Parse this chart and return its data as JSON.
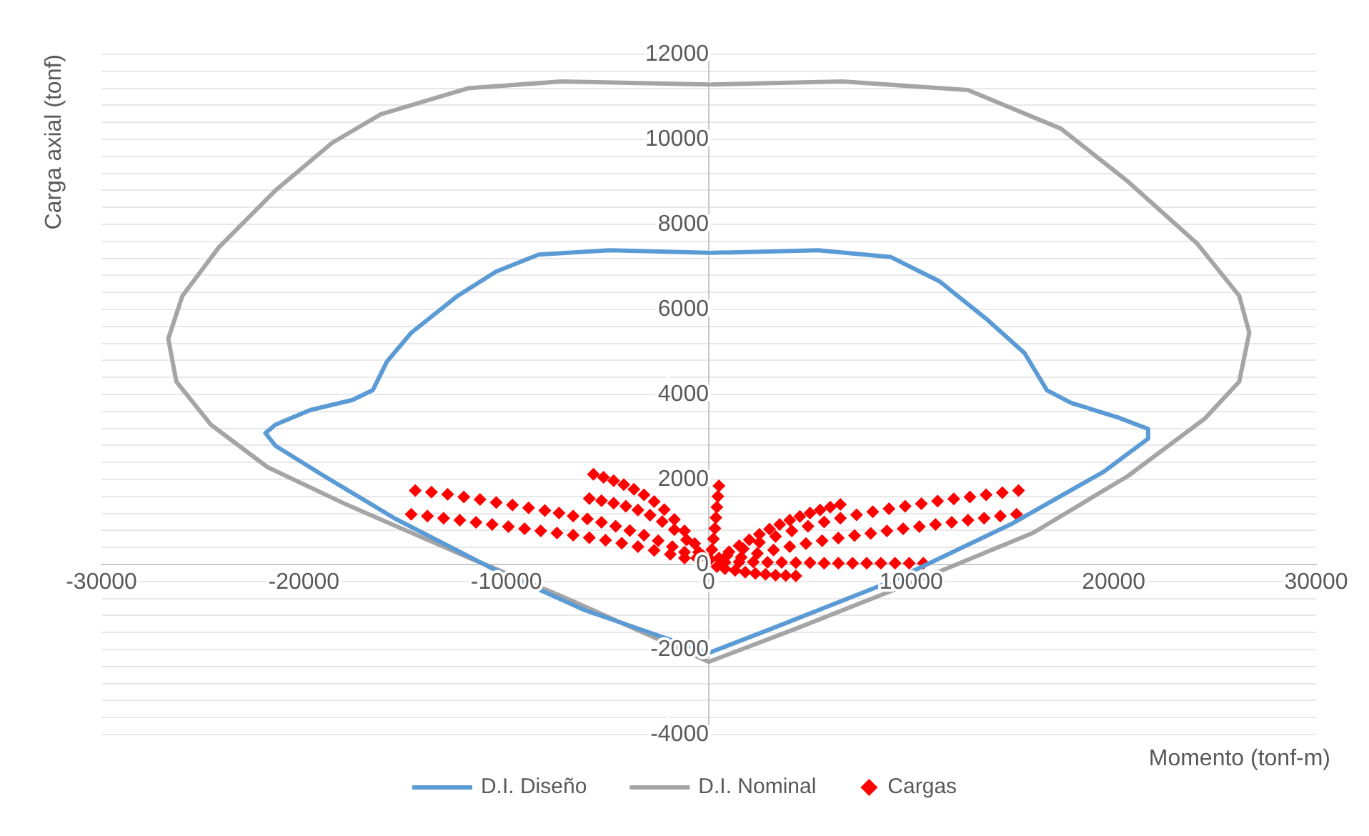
{
  "chart_data": {
    "type": "line",
    "xlabel": "Momento (tonf-m)",
    "ylabel": "Carga axial (tonf)",
    "xlim": [
      -30000,
      30000
    ],
    "xticks": [
      -30000,
      -20000,
      -10000,
      0,
      10000,
      20000,
      30000
    ],
    "ylim": [
      -4000,
      12000
    ],
    "yticks": [
      -4000,
      {
        "value": -3600,
        "label": null
      },
      {
        "value": -3200,
        "label": null
      },
      {
        "value": -2800,
        "label": null
      },
      {
        "value": -2400,
        "label": null
      },
      -2000,
      {
        "value": -1600,
        "label": null
      },
      {
        "value": -1200,
        "label": null
      },
      {
        "value": -800,
        "label": null
      },
      {
        "value": -400,
        "label": null
      },
      0,
      {
        "value": 400,
        "label": null
      },
      {
        "value": 800,
        "label": null
      },
      {
        "value": 1200,
        "label": null
      },
      {
        "value": 1600,
        "label": null
      },
      2000,
      {
        "value": 2400,
        "label": null
      },
      {
        "value": 2800,
        "label": null
      },
      {
        "value": 3200,
        "label": null
      },
      {
        "value": 3600,
        "label": null
      },
      4000,
      {
        "value": 4400,
        "label": null
      },
      {
        "value": 4800,
        "label": null
      },
      {
        "value": 5200,
        "label": null
      },
      {
        "value": 5600,
        "label": null
      },
      6000,
      {
        "value": 6400,
        "label": null
      },
      {
        "value": 6800,
        "label": null
      },
      {
        "value": 7200,
        "label": null
      },
      {
        "value": 7600,
        "label": null
      },
      8000,
      {
        "value": 8400,
        "label": null
      },
      {
        "value": 8800,
        "label": null
      },
      {
        "value": 9200,
        "label": null
      },
      {
        "value": 9600,
        "label": null
      },
      10000,
      {
        "value": 10400,
        "label": null
      },
      {
        "value": 10800,
        "label": null
      },
      {
        "value": 11200,
        "label": null
      },
      {
        "value": 11600,
        "label": null
      },
      12000
    ],
    "grid": "y",
    "legend": "bottom",
    "series": [
      {
        "name": "D.I. Diseño",
        "color": "#5b9bd5",
        "marker": "none",
        "line_style": "solid",
        "x": [
          0,
          -4900,
          -8400,
          -10500,
          -12400,
          -14700,
          -15900,
          -16600,
          -17600,
          -19700,
          -21400,
          -21900,
          -21400,
          -19000,
          -15500,
          -10800,
          -6100,
          0,
          3100,
          9000,
          14900,
          19500,
          21700,
          21700,
          20200,
          17900,
          16700,
          15600,
          13700,
          11400,
          9000,
          5400,
          150
        ],
        "values": [
          7330,
          7390,
          7290,
          6890,
          6320,
          5450,
          4770,
          4100,
          3870,
          3630,
          3290,
          3090,
          2790,
          2080,
          1080,
          -70,
          -1080,
          -2080,
          -1510,
          -400,
          940,
          2180,
          2960,
          3190,
          3460,
          3800,
          4100,
          4970,
          5780,
          6660,
          7230,
          7390,
          7330
        ]
      },
      {
        "name": "D.I. Nominal",
        "color": "#a5a5a5",
        "marker": "none",
        "line_style": "solid",
        "x": [
          0,
          -7300,
          -11900,
          -16200,
          -18600,
          -21400,
          -24200,
          -26000,
          -26700,
          -26300,
          -24600,
          -21800,
          -17900,
          -11900,
          -7300,
          0,
          4300,
          10200,
          16000,
          20700,
          24500,
          26200,
          26700,
          26200,
          24100,
          20700,
          17400,
          12800,
          6600,
          150
        ],
        "values": [
          11290,
          11360,
          11200,
          10590,
          9920,
          8800,
          7460,
          6320,
          5310,
          4300,
          3290,
          2290,
          1410,
          170,
          -740,
          -2290,
          -1510,
          -400,
          740,
          2080,
          3430,
          4300,
          5450,
          6320,
          7560,
          9010,
          10250,
          11160,
          11360,
          11290
        ]
      },
      {
        "name": "Cargas",
        "type": "scatter",
        "color": "#ff0000",
        "marker": "diamond",
        "x": [
          -14500,
          -13700,
          -12900,
          -12100,
          -11300,
          -10500,
          -9700,
          -8900,
          -8100,
          -7400,
          -6700,
          -6000,
          -5300,
          -4600,
          -3900,
          -3200,
          -2500,
          -1800,
          -1200,
          -600,
          -14700,
          -13900,
          -13100,
          -12300,
          -11500,
          -10700,
          -9900,
          -9100,
          -8300,
          -7500,
          -6700,
          -5900,
          -5100,
          -4300,
          -3500,
          -2700,
          -1900,
          -1200,
          -5700,
          -5200,
          -4700,
          -4200,
          -3700,
          -3200,
          -2700,
          -2200,
          -1700,
          -1200,
          -700,
          -300,
          -5900,
          -5300,
          -4700,
          -4100,
          -3500,
          -2900,
          -2300,
          -1700,
          -1100,
          -500,
          500,
          450,
          400,
          350,
          300,
          230,
          150,
          70,
          15300,
          14500,
          13700,
          12900,
          12100,
          11300,
          10500,
          9700,
          8900,
          8100,
          7300,
          6500,
          5700,
          4900,
          4100,
          3300,
          2500,
          1700,
          900,
          15200,
          14400,
          13600,
          12800,
          12000,
          11200,
          10400,
          9600,
          8800,
          8000,
          7200,
          6400,
          5600,
          4800,
          4000,
          3200,
          2400,
          1600,
          6500,
          6000,
          5500,
          5000,
          4500,
          4000,
          3500,
          3000,
          2500,
          2000,
          1500,
          1000,
          500,
          10600,
          9900,
          9200,
          8500,
          7800,
          7100,
          6400,
          5700,
          5000,
          4300,
          3600,
          2900,
          2200,
          1500,
          800,
          4300,
          3800,
          3300,
          2800,
          2300,
          1800,
          1300,
          800,
          400
        ],
        "values": [
          1740,
          1700,
          1650,
          1590,
          1530,
          1460,
          1400,
          1330,
          1270,
          1210,
          1140,
          1070,
          990,
          900,
          800,
          690,
          560,
          420,
          290,
          150,
          1180,
          1140,
          1090,
          1040,
          990,
          940,
          890,
          840,
          790,
          740,
          690,
          630,
          570,
          500,
          420,
          330,
          240,
          150,
          2120,
          2050,
          1970,
          1880,
          1770,
          1640,
          1480,
          1290,
          1060,
          790,
          490,
          210,
          1550,
          1500,
          1440,
          1370,
          1280,
          1160,
          1010,
          820,
          580,
          290,
          1850,
          1600,
          1350,
          1100,
          850,
          600,
          350,
          120,
          1740,
          1690,
          1640,
          1590,
          1540,
          1490,
          1430,
          1370,
          1310,
          1240,
          1170,
          1090,
          1000,
          900,
          790,
          660,
          520,
          370,
          210,
          1180,
          1140,
          1090,
          1040,
          990,
          940,
          890,
          840,
          790,
          730,
          680,
          620,
          560,
          490,
          420,
          340,
          260,
          170,
          1410,
          1350,
          1280,
          1210,
          1130,
          1040,
          940,
          830,
          710,
          580,
          440,
          300,
          150,
          30,
          30,
          30,
          30,
          30,
          30,
          30,
          30,
          40,
          40,
          50,
          50,
          60,
          60,
          50,
          -270,
          -260,
          -250,
          -230,
          -210,
          -180,
          -140,
          -100,
          -50
        ]
      }
    ]
  }
}
